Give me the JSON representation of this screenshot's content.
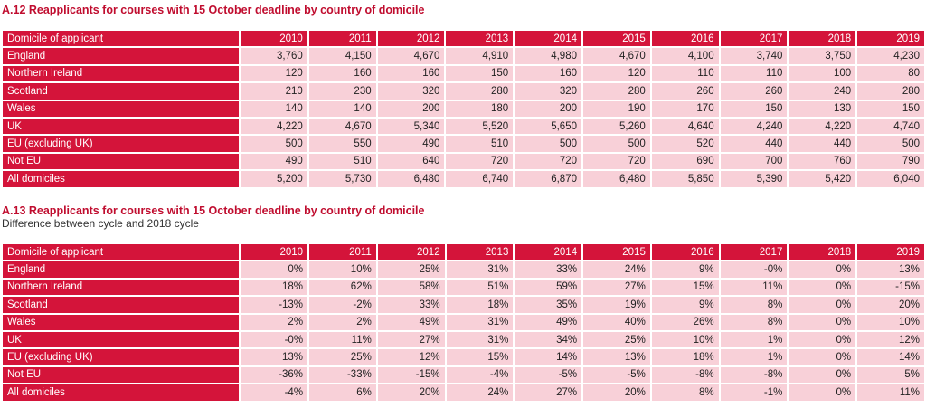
{
  "table_a12": {
    "title": "A.12 Reapplicants for courses with 15 October deadline by country of domicile",
    "subtitle": "",
    "header": [
      "Domicile of applicant",
      "2010",
      "2011",
      "2012",
      "2013",
      "2014",
      "2015",
      "2016",
      "2017",
      "2018",
      "2019"
    ],
    "rows": [
      {
        "label": "England",
        "values": [
          "3,760",
          "4,150",
          "4,670",
          "4,910",
          "4,980",
          "4,670",
          "4,100",
          "3,740",
          "3,750",
          "4,230"
        ]
      },
      {
        "label": "Northern Ireland",
        "values": [
          "120",
          "160",
          "160",
          "150",
          "160",
          "120",
          "110",
          "110",
          "100",
          "80"
        ]
      },
      {
        "label": "Scotland",
        "values": [
          "210",
          "230",
          "320",
          "280",
          "320",
          "280",
          "260",
          "260",
          "240",
          "280"
        ]
      },
      {
        "label": "Wales",
        "values": [
          "140",
          "140",
          "200",
          "180",
          "200",
          "190",
          "170",
          "150",
          "130",
          "150"
        ]
      },
      {
        "label": "UK",
        "values": [
          "4,220",
          "4,670",
          "5,340",
          "5,520",
          "5,650",
          "5,260",
          "4,640",
          "4,240",
          "4,220",
          "4,740"
        ]
      },
      {
        "label": "EU (excluding UK)",
        "values": [
          "500",
          "550",
          "490",
          "510",
          "500",
          "500",
          "520",
          "440",
          "440",
          "500"
        ]
      },
      {
        "label": "Not EU",
        "values": [
          "490",
          "510",
          "640",
          "720",
          "720",
          "720",
          "690",
          "700",
          "760",
          "790"
        ]
      },
      {
        "label": "All domiciles",
        "values": [
          "5,200",
          "5,730",
          "6,480",
          "6,740",
          "6,870",
          "6,480",
          "5,850",
          "5,390",
          "5,420",
          "6,040"
        ]
      }
    ]
  },
  "table_a13": {
    "title": "A.13 Reapplicants for courses with 15 October deadline by country of domicile",
    "subtitle": "Difference between cycle and 2018 cycle",
    "header": [
      "Domicile of applicant",
      "2010",
      "2011",
      "2012",
      "2013",
      "2014",
      "2015",
      "2016",
      "2017",
      "2018",
      "2019"
    ],
    "rows": [
      {
        "label": "England",
        "values": [
          "0%",
          "10%",
          "25%",
          "31%",
          "33%",
          "24%",
          "9%",
          "-0%",
          "0%",
          "13%"
        ]
      },
      {
        "label": "Northern Ireland",
        "values": [
          "18%",
          "62%",
          "58%",
          "51%",
          "59%",
          "27%",
          "15%",
          "11%",
          "0%",
          "-15%"
        ]
      },
      {
        "label": "Scotland",
        "values": [
          "-13%",
          "-2%",
          "33%",
          "18%",
          "35%",
          "19%",
          "9%",
          "8%",
          "0%",
          "20%"
        ]
      },
      {
        "label": "Wales",
        "values": [
          "2%",
          "2%",
          "49%",
          "31%",
          "49%",
          "40%",
          "26%",
          "8%",
          "0%",
          "10%"
        ]
      },
      {
        "label": "UK",
        "values": [
          "-0%",
          "11%",
          "27%",
          "31%",
          "34%",
          "25%",
          "10%",
          "1%",
          "0%",
          "12%"
        ]
      },
      {
        "label": "EU (excluding UK)",
        "values": [
          "13%",
          "25%",
          "12%",
          "15%",
          "14%",
          "13%",
          "18%",
          "1%",
          "0%",
          "14%"
        ]
      },
      {
        "label": "Not EU",
        "values": [
          "-36%",
          "-33%",
          "-15%",
          "-4%",
          "-5%",
          "-5%",
          "-8%",
          "-8%",
          "0%",
          "5%"
        ]
      },
      {
        "label": "All domiciles",
        "values": [
          "-4%",
          "6%",
          "20%",
          "24%",
          "27%",
          "20%",
          "8%",
          "-1%",
          "0%",
          "11%"
        ]
      }
    ]
  },
  "colors": {
    "title": "#c00d2f",
    "header_fill": "#d4143a",
    "cell_fill": "#f8d0d8"
  }
}
